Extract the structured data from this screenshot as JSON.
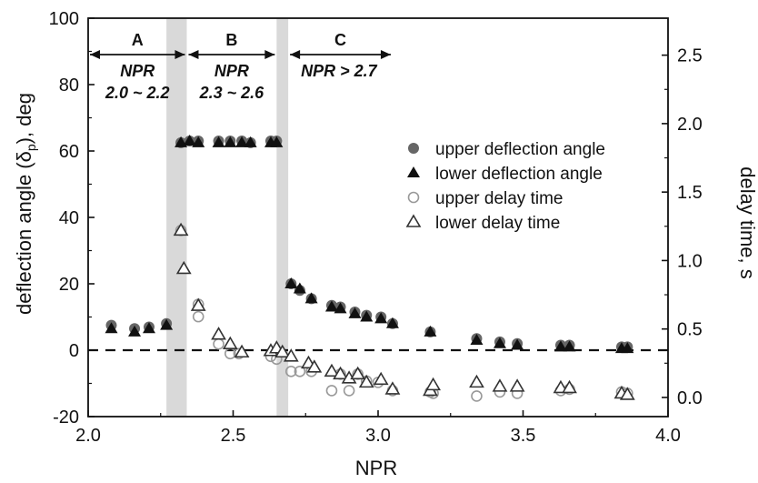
{
  "chart_data": {
    "type": "scatter",
    "xlabel": "NPR",
    "ylabel": "deflection angle (δp), deg",
    "ylabel_main": "deflection angle (δ",
    "ylabel_sub": "p",
    "ylabel_end": "), deg",
    "y2label": "delay time, s",
    "xlim": [
      2.0,
      4.0
    ],
    "ylim": [
      -20,
      100
    ],
    "y2lim": [
      -0.14,
      2.77
    ],
    "x_ticks": [
      2.0,
      2.5,
      3.0,
      3.5,
      4.0
    ],
    "x_tick_labels": [
      "2.0",
      "2.5",
      "3.0",
      "3.5",
      "4.0"
    ],
    "y_ticks": [
      -20,
      0,
      20,
      40,
      60,
      80,
      100
    ],
    "y_tick_labels": [
      "-20",
      "0",
      "20",
      "40",
      "60",
      "80",
      "100"
    ],
    "y2_ticks": [
      0.0,
      0.5,
      1.0,
      1.5,
      2.0,
      2.5
    ],
    "y2_tick_labels": [
      "0.0",
      "0.5",
      "1.0",
      "1.5",
      "2.0",
      "2.5"
    ],
    "reference_line_y": 0,
    "shaded_bands": [
      [
        2.27,
        2.34
      ],
      [
        2.65,
        2.69
      ]
    ],
    "regions": [
      {
        "letter": "A",
        "line1": "NPR",
        "line2": "2.0 ~ 2.2",
        "arrow_from": 2.0,
        "arrow_to": 2.34
      },
      {
        "letter": "B",
        "line1": "NPR",
        "line2": "2.3 ~ 2.6",
        "arrow_from": 2.34,
        "arrow_to": 2.65
      },
      {
        "letter": "C",
        "line1": "NPR > 2.7",
        "line2": "",
        "arrow_from": 2.69,
        "arrow_to": 3.05
      }
    ],
    "legend_position": "right",
    "series": [
      {
        "name": "upper deflection angle",
        "marker": "filled-circle",
        "axis": "left",
        "color": "#666666",
        "x": [
          2.08,
          2.16,
          2.21,
          2.27,
          2.32,
          2.35,
          2.38,
          2.45,
          2.49,
          2.53,
          2.56,
          2.63,
          2.65,
          2.7,
          2.73,
          2.77,
          2.84,
          2.87,
          2.92,
          2.96,
          3.01,
          3.05,
          3.18,
          3.34,
          3.42,
          3.48,
          3.63,
          3.66,
          3.84,
          3.86
        ],
        "y": [
          7.5,
          6.5,
          7,
          8,
          62.5,
          63,
          63,
          63,
          63,
          63,
          62.5,
          63,
          63,
          20,
          18,
          15.5,
          13.5,
          13,
          11.5,
          10.5,
          10,
          8,
          5.5,
          3.5,
          2.5,
          2,
          1.5,
          1.5,
          1,
          1
        ]
      },
      {
        "name": "lower deflection angle",
        "marker": "filled-triangle",
        "axis": "left",
        "color": "#111111",
        "x": [
          2.08,
          2.16,
          2.21,
          2.27,
          2.32,
          2.35,
          2.38,
          2.45,
          2.49,
          2.53,
          2.56,
          2.63,
          2.65,
          2.7,
          2.73,
          2.77,
          2.84,
          2.87,
          2.92,
          2.96,
          3.01,
          3.05,
          3.18,
          3.34,
          3.42,
          3.48,
          3.63,
          3.66,
          3.84,
          3.86
        ],
        "y": [
          6.5,
          5.5,
          6.5,
          7.5,
          62.5,
          63,
          62.5,
          62.5,
          62.5,
          62.5,
          62.5,
          62.5,
          62.5,
          20,
          18.5,
          15.5,
          13,
          12.5,
          11,
          10,
          9.5,
          8,
          5.5,
          3,
          2,
          1.5,
          1,
          1,
          0.5,
          0.5
        ]
      },
      {
        "name": "upper delay time",
        "marker": "open-circle",
        "axis": "right",
        "color": "#999999",
        "x": [
          2.32,
          2.38,
          2.38,
          2.45,
          2.49,
          2.52,
          2.63,
          2.65,
          2.7,
          2.73,
          2.77,
          2.84,
          2.87,
          2.9,
          2.93,
          2.96,
          3.0,
          3.05,
          3.18,
          3.19,
          3.34,
          3.42,
          3.48,
          3.63,
          3.66,
          3.84,
          3.86
        ],
        "y": [
          1.22,
          0.68,
          0.59,
          0.39,
          0.32,
          0.32,
          0.3,
          0.28,
          0.19,
          0.19,
          0.19,
          0.05,
          0.17,
          0.05,
          0.17,
          0.12,
          0.11,
          0.05,
          0.04,
          0.03,
          0.01,
          0.04,
          0.03,
          0.05,
          0.06,
          0.04,
          0.03
        ]
      },
      {
        "name": "lower delay time",
        "marker": "open-triangle",
        "axis": "right",
        "color": "#333333",
        "x": [
          2.32,
          2.33,
          2.38,
          2.45,
          2.49,
          2.53,
          2.63,
          2.65,
          2.67,
          2.7,
          2.76,
          2.78,
          2.84,
          2.87,
          2.9,
          2.93,
          2.96,
          3.01,
          3.05,
          3.18,
          3.19,
          3.34,
          3.42,
          3.48,
          3.63,
          3.66,
          3.84,
          3.86
        ],
        "y": [
          1.22,
          0.94,
          0.67,
          0.46,
          0.39,
          0.33,
          0.34,
          0.36,
          0.33,
          0.3,
          0.25,
          0.22,
          0.19,
          0.17,
          0.14,
          0.17,
          0.11,
          0.13,
          0.06,
          0.05,
          0.09,
          0.11,
          0.08,
          0.08,
          0.07,
          0.07,
          0.03,
          0.02
        ]
      }
    ]
  }
}
